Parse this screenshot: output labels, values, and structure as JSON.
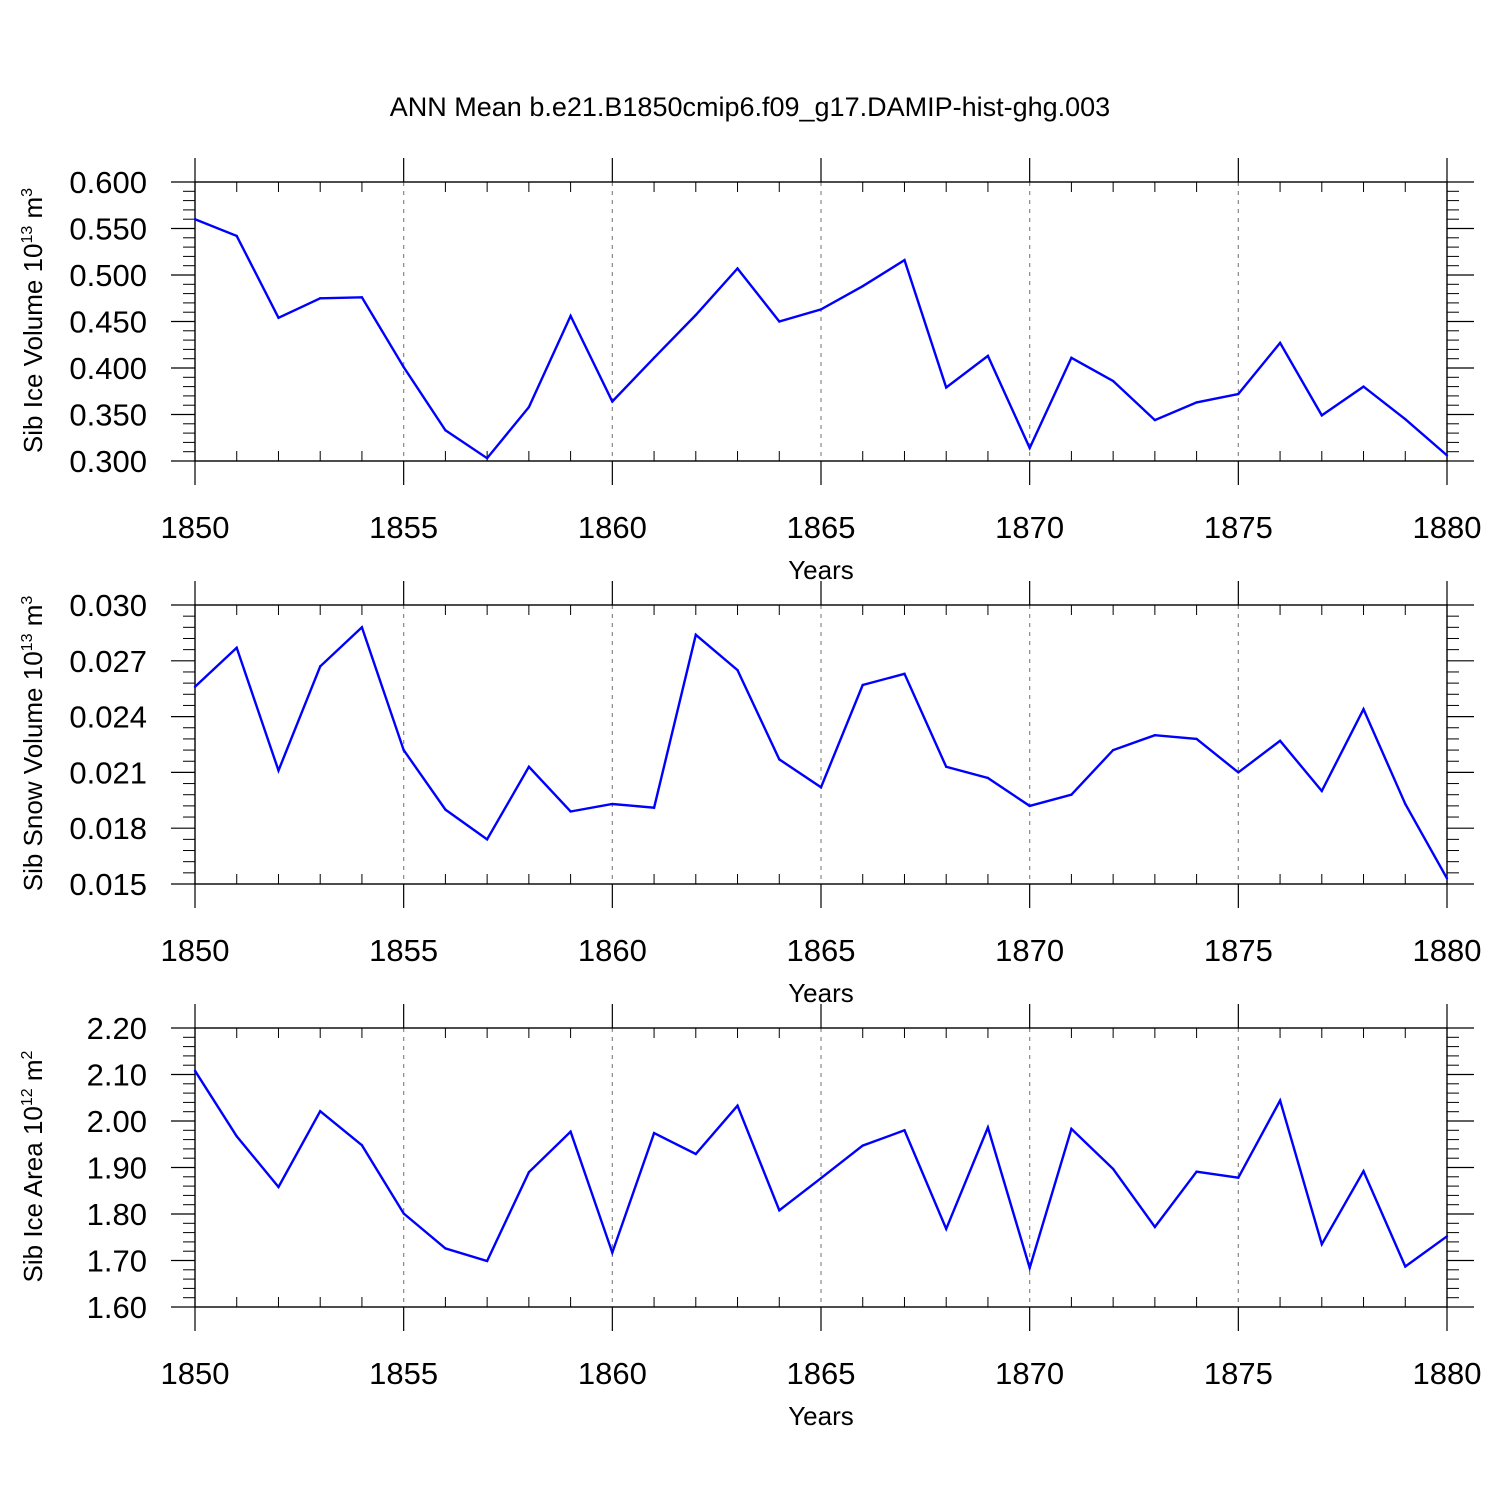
{
  "title": "ANN Mean b.e21.B1850cmip6.f09_g17.DAMIP-hist-ghg.003",
  "line_color": "#0000ff",
  "gridline_color": "#888888",
  "chart_data": [
    {
      "type": "line",
      "xlabel": "Years",
      "ylabel": {
        "text": "Sib Ice Volume 10",
        "exp": "13",
        "unit": " m",
        "unit_exp": "3"
      },
      "xlim": [
        1850,
        1880
      ],
      "ylim": [
        0.3,
        0.6
      ],
      "yticks": [
        "0.600",
        "0.550",
        "0.500",
        "0.450",
        "0.400",
        "0.350",
        "0.300"
      ],
      "ytick_values": [
        0.6,
        0.55,
        0.5,
        0.45,
        0.4,
        0.35,
        0.3
      ],
      "xticks": [
        1850,
        1855,
        1860,
        1865,
        1870,
        1875,
        1880
      ],
      "x": [
        1850,
        1851,
        1852,
        1853,
        1854,
        1855,
        1856,
        1857,
        1858,
        1859,
        1860,
        1861,
        1862,
        1863,
        1864,
        1865,
        1866,
        1867,
        1868,
        1869,
        1870,
        1871,
        1872,
        1873,
        1874,
        1875,
        1876,
        1877,
        1878,
        1879,
        1880
      ],
      "y": [
        0.56,
        0.542,
        0.454,
        0.475,
        0.476,
        0.401,
        0.333,
        0.303,
        0.358,
        0.456,
        0.364,
        0.411,
        0.457,
        0.507,
        0.45,
        0.463,
        0.488,
        0.516,
        0.379,
        0.413,
        0.314,
        0.411,
        0.386,
        0.344,
        0.363,
        0.372,
        0.427,
        0.349,
        0.38,
        0.345,
        0.306
      ]
    },
    {
      "type": "line",
      "xlabel": "Years",
      "ylabel": {
        "text": "Sib Snow Volume 10",
        "exp": "13",
        "unit": " m",
        "unit_exp": "3"
      },
      "xlim": [
        1850,
        1880
      ],
      "ylim": [
        0.015,
        0.03
      ],
      "yticks": [
        "0.030",
        "0.027",
        "0.024",
        "0.021",
        "0.018",
        "0.015"
      ],
      "ytick_values": [
        0.03,
        0.027,
        0.024,
        0.021,
        0.018,
        0.015
      ],
      "xticks": [
        1850,
        1855,
        1860,
        1865,
        1870,
        1875,
        1880
      ],
      "x": [
        1850,
        1851,
        1852,
        1853,
        1854,
        1855,
        1856,
        1857,
        1858,
        1859,
        1860,
        1861,
        1862,
        1863,
        1864,
        1865,
        1866,
        1867,
        1868,
        1869,
        1870,
        1871,
        1872,
        1873,
        1874,
        1875,
        1876,
        1877,
        1878,
        1879,
        1880
      ],
      "y": [
        0.0256,
        0.0277,
        0.0211,
        0.0267,
        0.0288,
        0.0222,
        0.019,
        0.0174,
        0.0213,
        0.0189,
        0.0193,
        0.0191,
        0.0284,
        0.0265,
        0.0217,
        0.0202,
        0.0257,
        0.0263,
        0.0213,
        0.0207,
        0.0192,
        0.0198,
        0.0222,
        0.023,
        0.0228,
        0.021,
        0.0227,
        0.02,
        0.0244,
        0.0193,
        0.0153
      ]
    },
    {
      "type": "line",
      "xlabel": "Years",
      "ylabel": {
        "text": "Sib Ice Area 10",
        "exp": "12",
        "unit": " m",
        "unit_exp": "2"
      },
      "xlim": [
        1850,
        1880
      ],
      "ylim": [
        1.6,
        2.2
      ],
      "yticks": [
        "2.20",
        "2.10",
        "2.00",
        "1.90",
        "1.80",
        "1.70",
        "1.60"
      ],
      "ytick_values": [
        2.2,
        2.1,
        2.0,
        1.9,
        1.8,
        1.7,
        1.6
      ],
      "xticks": [
        1850,
        1855,
        1860,
        1865,
        1870,
        1875,
        1880
      ],
      "x": [
        1850,
        1851,
        1852,
        1853,
        1854,
        1855,
        1856,
        1857,
        1858,
        1859,
        1860,
        1861,
        1862,
        1863,
        1864,
        1865,
        1866,
        1867,
        1868,
        1869,
        1870,
        1871,
        1872,
        1873,
        1874,
        1875,
        1876,
        1877,
        1878,
        1879,
        1880
      ],
      "y": [
        2.108,
        1.967,
        1.858,
        2.021,
        1.948,
        1.801,
        1.726,
        1.699,
        1.89,
        1.977,
        1.717,
        1.974,
        1.929,
        2.033,
        1.808,
        1.877,
        1.947,
        1.98,
        1.768,
        1.986,
        1.684,
        1.983,
        1.897,
        1.772,
        1.891,
        1.878,
        2.044,
        1.735,
        1.892,
        1.687,
        1.752
      ]
    }
  ]
}
